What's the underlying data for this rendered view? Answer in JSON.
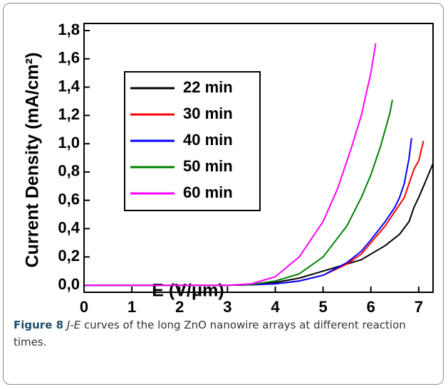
{
  "chart_data": {
    "type": "line",
    "xlabel": "E (V/μm)",
    "ylabel": "Current Density (mA/cm²)",
    "xlim": [
      0,
      7.3
    ],
    "ylim": [
      -0.05,
      1.85
    ],
    "xticks": [
      0,
      1,
      2,
      3,
      4,
      5,
      6,
      7
    ],
    "yticks": [
      {
        "value": 0,
        "label": "0,0"
      },
      {
        "value": 0.2,
        "label": "0,2"
      },
      {
        "value": 0.4,
        "label": "0,4"
      },
      {
        "value": 0.6,
        "label": "0,6"
      },
      {
        "value": 0.8,
        "label": "0,8"
      },
      {
        "value": 1.0,
        "label": "1,0"
      },
      {
        "value": 1.2,
        "label": "1,2"
      },
      {
        "value": 1.4,
        "label": "1,4"
      },
      {
        "value": 1.6,
        "label": "1,6"
      },
      {
        "value": 1.8,
        "label": "1,8"
      }
    ],
    "legend": "upper left",
    "series": [
      {
        "name": "22 min",
        "color": "#000000",
        "x": [
          0,
          3,
          3.5,
          4,
          4.5,
          5,
          5.5,
          5.8,
          6,
          6.3,
          6.6,
          6.8,
          6.9,
          7.0,
          7.1,
          7.2,
          7.3
        ],
        "values": [
          0,
          0,
          0.005,
          0.02,
          0.05,
          0.1,
          0.15,
          0.18,
          0.22,
          0.28,
          0.36,
          0.45,
          0.55,
          0.62,
          0.7,
          0.78,
          0.86
        ]
      },
      {
        "name": "30 min",
        "color": "#ff0000",
        "x": [
          0,
          3,
          3.5,
          4,
          4.5,
          5,
          5.5,
          5.8,
          6,
          6.3,
          6.5,
          6.7,
          6.8,
          6.9,
          7.0,
          7.05,
          7.1
        ],
        "values": [
          0,
          0,
          0.003,
          0.01,
          0.03,
          0.07,
          0.15,
          0.22,
          0.3,
          0.42,
          0.52,
          0.62,
          0.72,
          0.82,
          0.88,
          0.95,
          1.02
        ]
      },
      {
        "name": "40 min",
        "color": "#0000ff",
        "x": [
          0,
          3,
          3.5,
          4,
          4.5,
          5,
          5.5,
          5.8,
          6,
          6.3,
          6.5,
          6.6,
          6.7,
          6.8,
          6.85
        ],
        "values": [
          0,
          0,
          0.003,
          0.01,
          0.03,
          0.07,
          0.16,
          0.24,
          0.32,
          0.45,
          0.55,
          0.62,
          0.72,
          0.9,
          1.04
        ]
      },
      {
        "name": "50 min",
        "color": "#008000",
        "x": [
          0,
          3,
          3.5,
          4,
          4.5,
          5,
          5.5,
          5.8,
          6,
          6.2,
          6.4,
          6.45
        ],
        "values": [
          0,
          0,
          0.005,
          0.03,
          0.08,
          0.2,
          0.42,
          0.62,
          0.78,
          0.98,
          1.22,
          1.31
        ]
      },
      {
        "name": "60 min",
        "color": "#ff00ff",
        "x": [
          0,
          3,
          3.5,
          4,
          4.5,
          5,
          5.3,
          5.6,
          5.8,
          6,
          6.1
        ],
        "values": [
          0,
          0,
          0.01,
          0.06,
          0.2,
          0.45,
          0.68,
          0.98,
          1.2,
          1.5,
          1.71
        ]
      }
    ]
  },
  "caption": {
    "label": "Figure 8",
    "italic": "J-E",
    "text": "curves of the long ZnO nanowire arrays at different reaction times."
  }
}
